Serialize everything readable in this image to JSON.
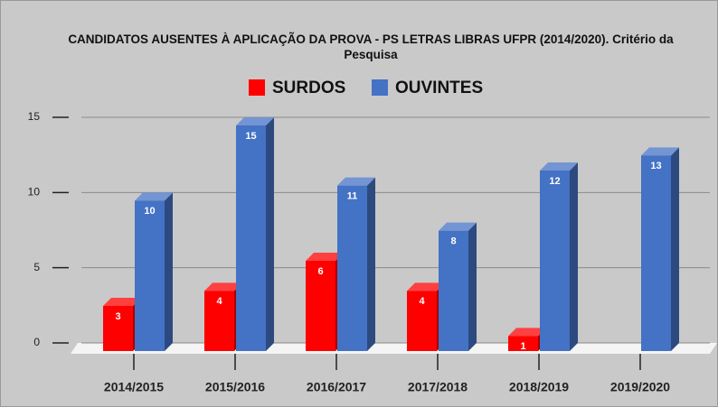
{
  "chart_data": {
    "type": "bar3d",
    "title": "CANDIDATOS AUSENTES À APLICAÇÃO DA PROVA - PS LETRAS LIBRAS UFPR (2014/2020). Critério da Pesquisa",
    "categories": [
      "2014/2015",
      "2015/2016",
      "2016/2017",
      "2017/2018",
      "2018/2019",
      "2019/2020"
    ],
    "series": [
      {
        "name": "SURDOS",
        "color": "#ff0000",
        "values": [
          3,
          4,
          6,
          4,
          1,
          null
        ]
      },
      {
        "name": "OUVINTES",
        "color": "#4472c4",
        "values": [
          10,
          15,
          11,
          8,
          12,
          13
        ]
      }
    ],
    "ylim": [
      0,
      15
    ],
    "yticks": [
      0,
      5,
      10,
      15
    ],
    "grid": true
  }
}
